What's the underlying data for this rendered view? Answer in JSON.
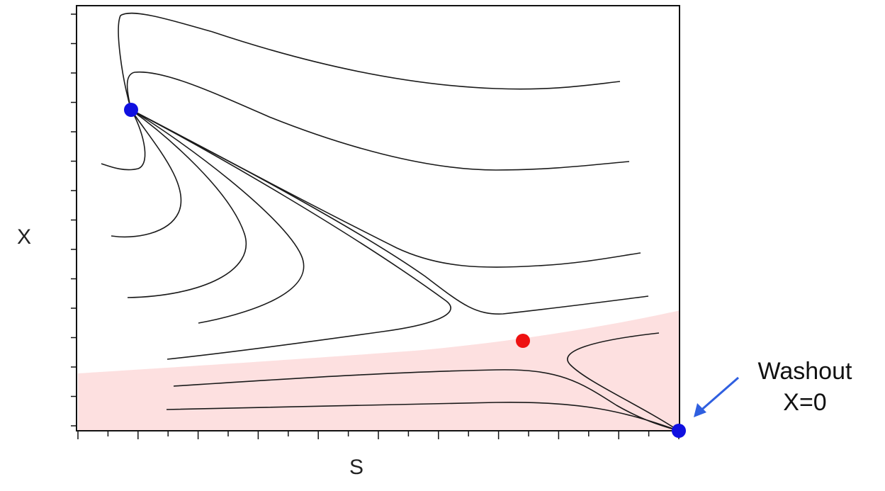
{
  "figure": {
    "x_axis_label": "S",
    "y_axis_label": "X",
    "annotation_line1": "Washout",
    "annotation_line2": "X=0"
  },
  "colors": {
    "trajectory": "#1a1a1a",
    "stable_point": "#1010e0",
    "unstable_point": "#ee1111",
    "washout_region": "#fde0e0",
    "arrow": "#2f5fe0",
    "frame": "#111111"
  },
  "icons": {
    "washout_arrow": "arrow-icon"
  }
}
